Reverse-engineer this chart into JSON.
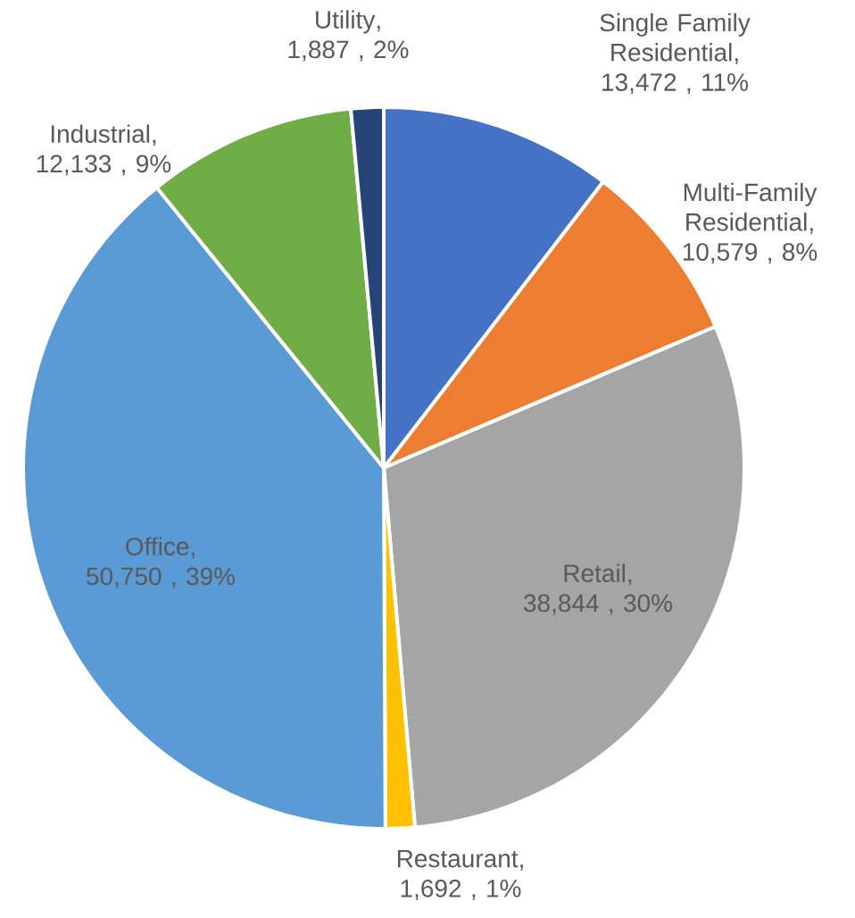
{
  "chart_data": {
    "type": "pie",
    "categories": [
      "Single Family Residential",
      "Multi-Family Residential",
      "Retail",
      "Restaurant",
      "Office",
      "Industrial",
      "Utility"
    ],
    "values": [
      13472,
      10579,
      38844,
      1692,
      50750,
      12133,
      1887
    ],
    "value_labels": [
      ", 13,472 , 11%",
      ", 10,579 , 8%",
      ",  38,844 , 30%",
      ", 1,692 , 1%",
      ", 50,750 , 39%",
      ", 12,133 , 9%",
      ",  1,887 , 2%"
    ],
    "colors": [
      "#4472c4",
      "#ed7d31",
      "#a5a5a5",
      "#ffc000",
      "#5b9bd5",
      "#70ad47",
      "#264478"
    ]
  }
}
